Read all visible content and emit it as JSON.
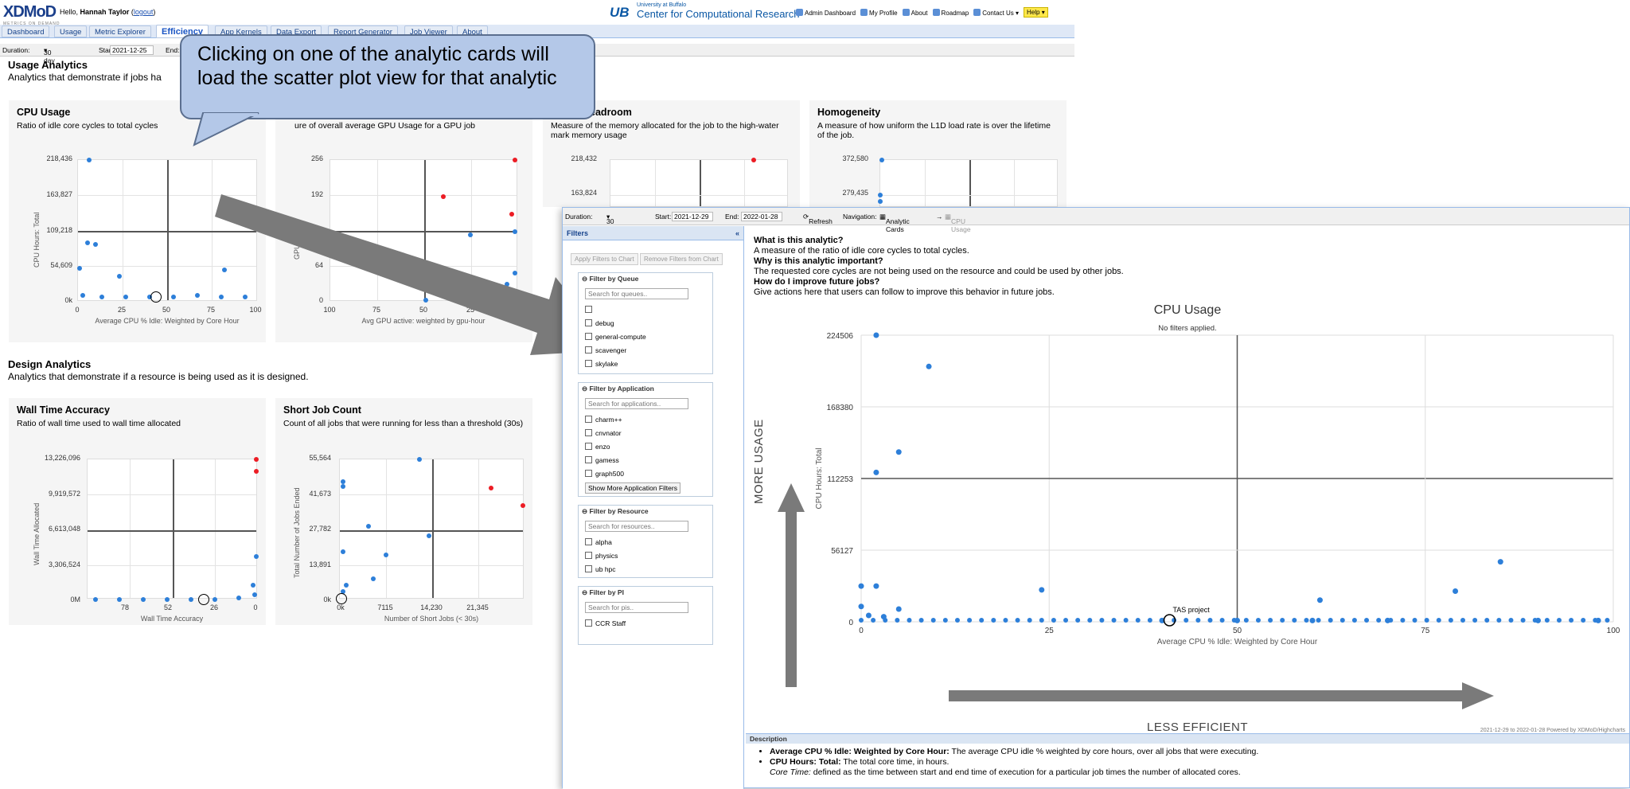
{
  "header": {
    "logo": "XDMoD",
    "logo_sub": "METRICS ON DEMAND",
    "hello": "Hello,",
    "user": "Hannah Taylor",
    "logout": "logout",
    "ub_mark": "UB",
    "university": "University at Buffalo",
    "center": "Center for Computational Research",
    "links": [
      "Admin Dashboard",
      "My Profile",
      "About",
      "Roadmap",
      "Contact Us ▾"
    ],
    "help": "Help ▾"
  },
  "tabs": [
    "Dashboard",
    "Usage",
    "Metric Explorer",
    "Efficiency",
    "App Kernels",
    "Data Export",
    "Report Generator",
    "Job Viewer",
    "About"
  ],
  "duration": {
    "label": "Duration:",
    "value": "30 day",
    "start_label": "Start:",
    "start": "2021-12-25",
    "end_label": "End:"
  },
  "usage": {
    "title": "Usage Analytics",
    "subtitle": "Analytics that demonstrate if jobs ha"
  },
  "design": {
    "title": "Design Analytics",
    "subtitle": "Analytics that demonstrate if a resource is being used as it is designed."
  },
  "cards": [
    {
      "title": "CPU Usage",
      "desc": "Ratio of idle core cycles to total cycles",
      "ylabel": "CPU Hours: Total",
      "xlabel": "Average CPU % Idle: Weighted by Core Hour",
      "yticks": [
        "218,436",
        "163,827",
        "109,218",
        "54,609",
        "0k"
      ],
      "xticks": [
        "0",
        "25",
        "50",
        "75",
        "100"
      ]
    },
    {
      "title": "",
      "desc": "ure of overall average GPU Usage for a GPU job",
      "ylabel": "GPU ... Total",
      "xlabel": "Avg GPU active: weighted by gpu-hour",
      "yticks": [
        "256",
        "192",
        "",
        "64",
        "0"
      ],
      "xticks": [
        "100",
        "75",
        "50",
        "25",
        ""
      ]
    },
    {
      "title": "Headroom",
      "desc": "Measure of the memory allocated for the job to the high-water mark memory usage",
      "ylabel": "",
      "xlabel": "",
      "yticks": [
        "218,432",
        "163,824"
      ],
      "xticks": []
    },
    {
      "title": "Homogeneity",
      "desc": "A measure of how uniform the L1D load rate is over the lifetime of the job.",
      "ylabel": "",
      "xlabel": "",
      "yticks": [
        "372,580",
        "279,435"
      ],
      "xticks": []
    },
    {
      "title": "Wall Time Accuracy",
      "desc": "Ratio of wall time used to wall time allocated",
      "ylabel": "Wall Time Allocated",
      "xlabel": "Wall Time Accuracy",
      "yticks": [
        "13,226,096",
        "9,919,572",
        "6,613,048",
        "3,306,524",
        "0M"
      ],
      "xticks": [
        "78",
        "52",
        "26",
        "0"
      ]
    },
    {
      "title": "Short Job Count",
      "desc": "Count of all jobs that were running for less than a threshold (30s)",
      "ylabel": "Total Number of Jobs Ended",
      "xlabel": "Number of Short Jobs (< 30s)",
      "yticks": [
        "55,564",
        "41,673",
        "27,782",
        "13,891",
        "0k"
      ],
      "xticks": [
        "0k",
        "7115",
        "14,230",
        "21,345"
      ]
    }
  ],
  "callout": "Clicking on one of the analytic cards will load the scatter plot view for that analytic",
  "front": {
    "duration_label": "Duration:",
    "duration": "30 day",
    "start_label": "Start:",
    "start": "2021-12-29",
    "end_label": "End:",
    "end": "2022-01-28",
    "refresh": "Refresh",
    "nav_label": "Navigation:",
    "nav_cards": "Analytic Cards",
    "nav_arrow": "→",
    "nav_current": "CPU Usage",
    "filters_title": "Filters",
    "apply": "Apply Filters to Chart",
    "remove": "Remove Filters from Chart",
    "groups": [
      {
        "title": "Filter by Queue",
        "search": "Search for queues..",
        "items": [
          "",
          "debug",
          "general-compute",
          "scavenger",
          "skylake"
        ]
      },
      {
        "title": "Filter by Application",
        "search": "Search for applications..",
        "items": [
          "charm++",
          "cnvnator",
          "enzo",
          "gamess",
          "graph500"
        ],
        "more": "Show More Application Filters"
      },
      {
        "title": "Filter by Resource",
        "search": "Search for resources..",
        "items": [
          "alpha",
          "physics",
          "ub hpc"
        ]
      },
      {
        "title": "Filter by PI",
        "search": "Search for pis..",
        "items": [
          "CCR Staff"
        ]
      }
    ],
    "info": {
      "q1": "What is this analytic?",
      "a1": "A measure of the ratio of idle core cycles to total cycles.",
      "q2": "Why is this analytic important?",
      "a2": "The requested core cycles are not being used on the resource and could be used by other jobs.",
      "q3": "How do I improve future jobs?",
      "a3": "Give actions here that users can follow to improve this behavior in future jobs."
    },
    "chart": {
      "title": "CPU Usage",
      "subtitle": "No filters applied.",
      "ylabel": "CPU Hours: Total",
      "xlabel": "Average CPU % Idle: Weighted by Core Hour",
      "yticks": [
        "224506",
        "168380",
        "112253",
        "56127",
        "0"
      ],
      "xticks": [
        "0",
        "25",
        "50",
        "75",
        "100"
      ],
      "annotation": "TAS project",
      "credits": "2021-12-29 to 2022-01-28 Powered by XDMoD/Highcharts"
    },
    "more_usage": "MORE USAGE",
    "less_efficient": "LESS EFFICIENT",
    "desc_title": "Description",
    "desc": [
      {
        "term": "Average CPU % Idle: Weighted by Core Hour:",
        "text": " The average CPU idle % weighted by core hours, over all jobs that were executing."
      },
      {
        "term": "CPU Hours: Total:",
        "text": " The total core time, in hours."
      }
    ],
    "core_time_term": "Core Time:",
    "core_time_text": " defined as the time between start and end time of execution for a particular job times the number of allocated cores."
  },
  "chart_data": {
    "type": "scatter",
    "title": "CPU Usage",
    "xlabel": "Average CPU % Idle: Weighted by Core Hour",
    "ylabel": "CPU Hours: Total",
    "xlim": [
      0,
      100
    ],
    "ylim": [
      0,
      224506
    ],
    "points": [
      [
        2,
        224506
      ],
      [
        9,
        200000
      ],
      [
        5,
        133000
      ],
      [
        2,
        117000
      ],
      [
        0,
        28000
      ],
      [
        2,
        28000
      ],
      [
        24,
        25000
      ],
      [
        85,
        47000
      ],
      [
        79,
        24000
      ],
      [
        61,
        17000
      ],
      [
        0,
        12000
      ],
      [
        5,
        10000
      ],
      [
        1,
        5000
      ],
      [
        3,
        4000
      ],
      [
        40,
        1000
      ],
      [
        50,
        1000
      ],
      [
        60,
        1000
      ],
      [
        70,
        1000
      ],
      [
        90,
        1000
      ],
      [
        98,
        1000
      ]
    ]
  }
}
